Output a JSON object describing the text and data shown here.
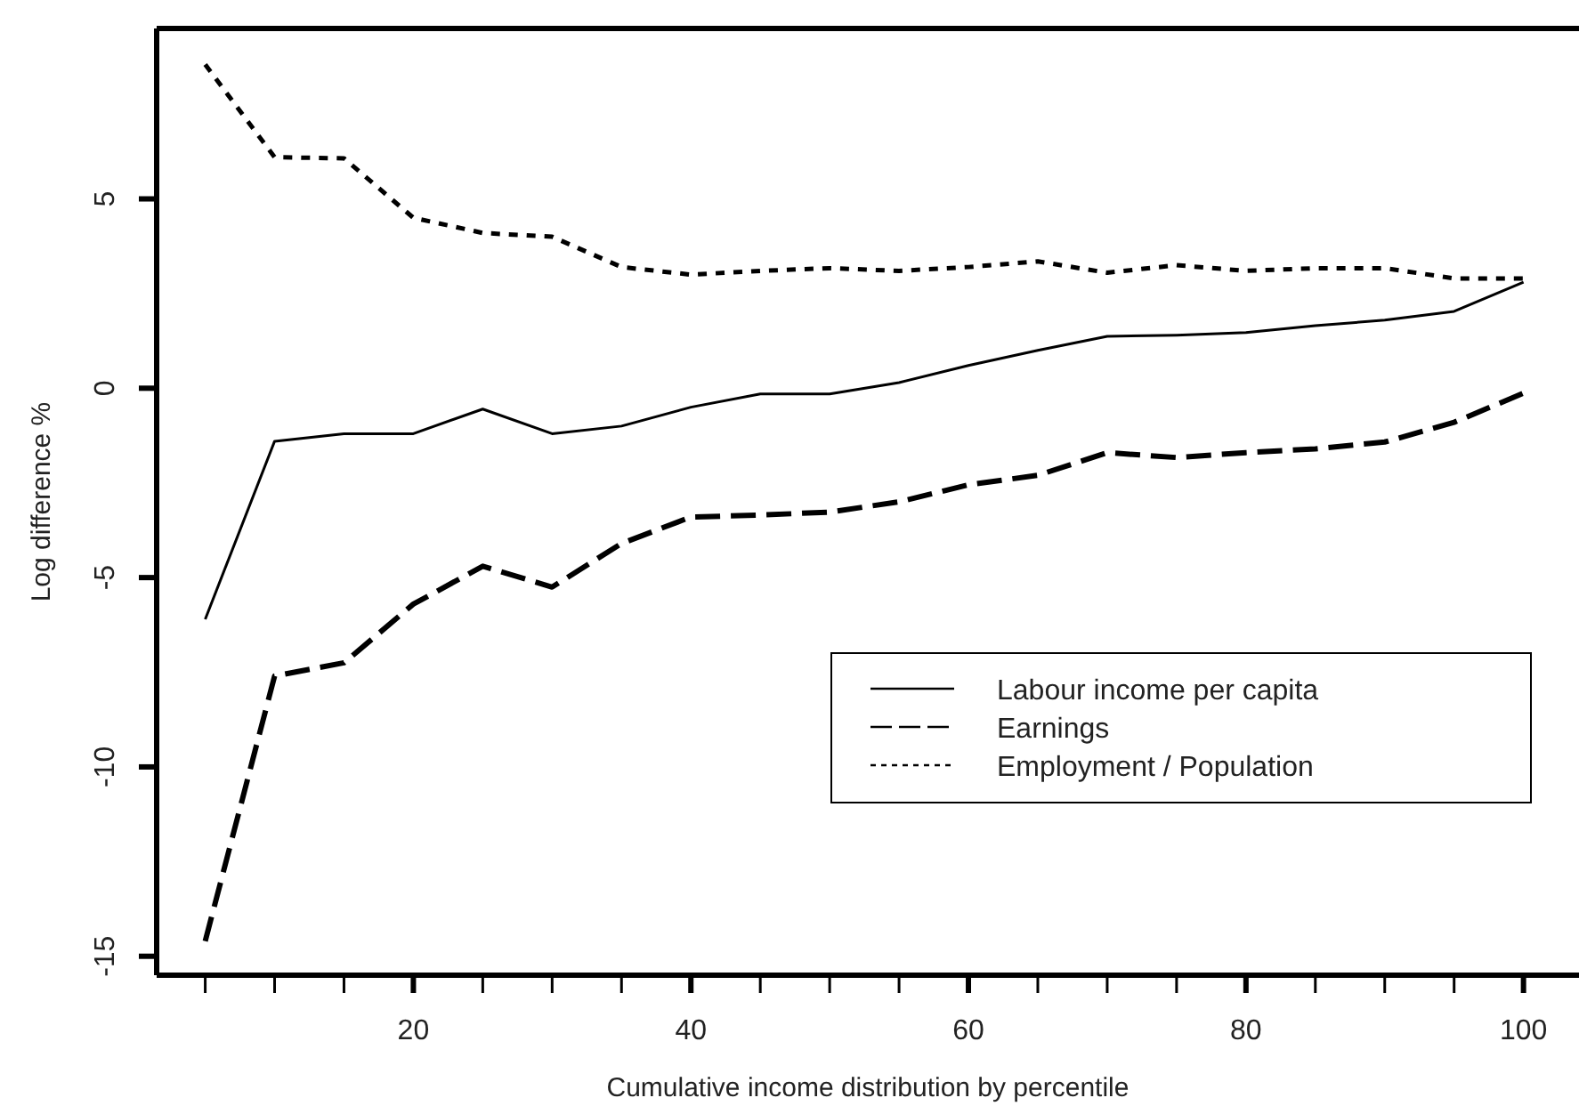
{
  "chart_data": {
    "type": "line",
    "xlabel": "Cumulative income distribution by percentile",
    "ylabel": "Log difference %",
    "x": [
      5,
      10,
      15,
      20,
      25,
      30,
      35,
      40,
      45,
      50,
      55,
      60,
      65,
      70,
      75,
      80,
      85,
      90,
      95,
      100
    ],
    "xlim": [
      1.5,
      104
    ],
    "ylim": [
      -15.5,
      9.5
    ],
    "xticks": [
      {
        "value": 5,
        "label": null
      },
      {
        "value": 10,
        "label": null
      },
      {
        "value": 15,
        "label": null
      },
      20,
      {
        "value": 25,
        "label": null
      },
      {
        "value": 30,
        "label": null
      },
      {
        "value": 35,
        "label": null
      },
      40,
      {
        "value": 45,
        "label": null
      },
      {
        "value": 50,
        "label": null
      },
      {
        "value": 55,
        "label": null
      },
      60,
      {
        "value": 65,
        "label": null
      },
      {
        "value": 70,
        "label": null
      },
      {
        "value": 75,
        "label": null
      },
      80,
      {
        "value": 85,
        "label": null
      },
      {
        "value": 90,
        "label": null
      },
      {
        "value": 95,
        "label": null
      },
      100
    ],
    "yticks": [
      -15,
      -10,
      -5,
      0,
      5
    ],
    "grid": false,
    "legend": "bottom right",
    "marker": "none",
    "series": [
      {
        "name": "Labour income per capita",
        "color": "#000000",
        "line_style": "solid",
        "values": [
          -6.1,
          -1.4,
          -1.2,
          -1.2,
          -0.55,
          -1.2,
          -1.0,
          -0.5,
          -0.15,
          -0.15,
          0.15,
          0.6,
          1.0,
          1.37,
          1.4,
          1.47,
          1.65,
          1.8,
          2.03,
          2.8
        ]
      },
      {
        "name": "Earnings",
        "color": "#000000",
        "line_style": "dashed",
        "values": [
          -14.6,
          -7.6,
          -7.25,
          -5.7,
          -4.7,
          -5.25,
          -4.1,
          -3.4,
          -3.35,
          -3.27,
          -3.0,
          -2.55,
          -2.3,
          -1.7,
          -1.83,
          -1.7,
          -1.6,
          -1.42,
          -0.9,
          -0.13
        ]
      },
      {
        "name": "Employment / Population",
        "color": "#000000",
        "line_style": "dotted",
        "values": [
          8.55,
          6.1,
          6.07,
          4.5,
          4.1,
          4.0,
          3.2,
          3.0,
          3.1,
          3.17,
          3.1,
          3.2,
          3.35,
          3.05,
          3.25,
          3.1,
          3.17,
          3.17,
          2.9,
          2.9
        ]
      }
    ]
  }
}
